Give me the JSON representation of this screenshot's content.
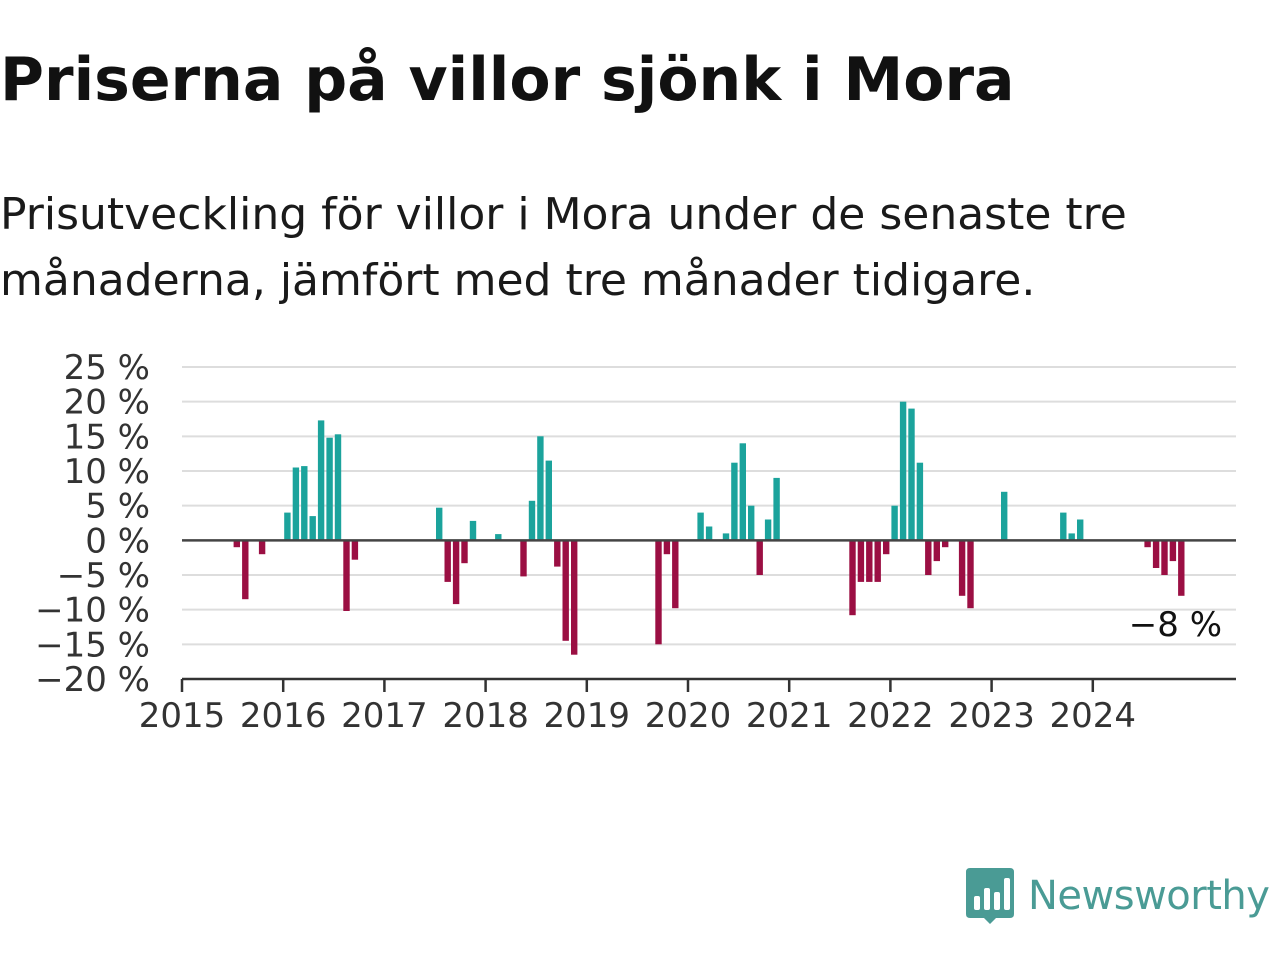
{
  "title": "Priserna på villor sjönk i Mora",
  "subtitle": "Prisutveckling för villor i Mora under de senaste tre månaderna, jämfört med tre månader tidigare.",
  "brand": {
    "name": "Newsworthy",
    "color": "#4a9b95"
  },
  "chart_data": {
    "type": "bar",
    "x_start": "2015-01",
    "x_end": "2025-05",
    "y_ticks": [
      25,
      20,
      15,
      10,
      5,
      0,
      -5,
      -10,
      -15,
      -20
    ],
    "y_tick_labels": [
      "25 %",
      "20 %",
      "15 %",
      "10 %",
      "5 %",
      "0 %",
      "−5 %",
      "−10 %",
      "−15 %",
      "−20 %"
    ],
    "x_tick_labels": [
      "2015",
      "2016",
      "2017",
      "2018",
      "2019",
      "2020",
      "2021",
      "2022",
      "2023",
      "2024"
    ],
    "ylim": [
      -20,
      25
    ],
    "grid": true,
    "colors": {
      "positive": "#1ba39c",
      "negative": "#9b0f43"
    },
    "last_value_label": "−8 %",
    "values": [
      [
        "2015-07",
        -1
      ],
      [
        "2015-08",
        -8.5
      ],
      [
        "2015-10",
        -2
      ],
      [
        "2016-01",
        4
      ],
      [
        "2016-02",
        10.5
      ],
      [
        "2016-03",
        10.7
      ],
      [
        "2016-04",
        3.5
      ],
      [
        "2016-05",
        17.3
      ],
      [
        "2016-06",
        14.8
      ],
      [
        "2016-07",
        15.3
      ],
      [
        "2016-08",
        -10.2
      ],
      [
        "2016-09",
        -2.8
      ],
      [
        "2017-07",
        4.7
      ],
      [
        "2017-08",
        -6
      ],
      [
        "2017-09",
        -9.2
      ],
      [
        "2017-10",
        -3.3
      ],
      [
        "2017-11",
        2.8
      ],
      [
        "2018-02",
        0.9
      ],
      [
        "2018-05",
        -5.2
      ],
      [
        "2018-06",
        5.7
      ],
      [
        "2018-07",
        15
      ],
      [
        "2018-08",
        11.5
      ],
      [
        "2018-09",
        -3.8
      ],
      [
        "2018-10",
        -14.5
      ],
      [
        "2018-11",
        -16.5
      ],
      [
        "2019-09",
        -15
      ],
      [
        "2019-10",
        -2
      ],
      [
        "2019-11",
        -9.8
      ],
      [
        "2020-02",
        4
      ],
      [
        "2020-03",
        2
      ],
      [
        "2020-05",
        1
      ],
      [
        "2020-06",
        11.2
      ],
      [
        "2020-07",
        14
      ],
      [
        "2020-08",
        5
      ],
      [
        "2020-09",
        -5
      ],
      [
        "2020-10",
        3
      ],
      [
        "2020-11",
        9
      ],
      [
        "2021-08",
        -10.8
      ],
      [
        "2021-09",
        -6
      ],
      [
        "2021-10",
        -6
      ],
      [
        "2021-11",
        -6
      ],
      [
        "2021-12",
        -2
      ],
      [
        "2022-01",
        5
      ],
      [
        "2022-02",
        20
      ],
      [
        "2022-03",
        19
      ],
      [
        "2022-04",
        11.2
      ],
      [
        "2022-05",
        -5
      ],
      [
        "2022-06",
        -3
      ],
      [
        "2022-07",
        -1
      ],
      [
        "2022-09",
        -8
      ],
      [
        "2022-10",
        -9.8
      ],
      [
        "2023-02",
        7
      ],
      [
        "2023-09",
        4
      ],
      [
        "2023-10",
        1
      ],
      [
        "2023-11",
        3
      ],
      [
        "2024-07",
        -1
      ],
      [
        "2024-08",
        -4
      ],
      [
        "2024-09",
        -5
      ],
      [
        "2024-10",
        -3
      ],
      [
        "2024-11",
        -8
      ]
    ]
  }
}
